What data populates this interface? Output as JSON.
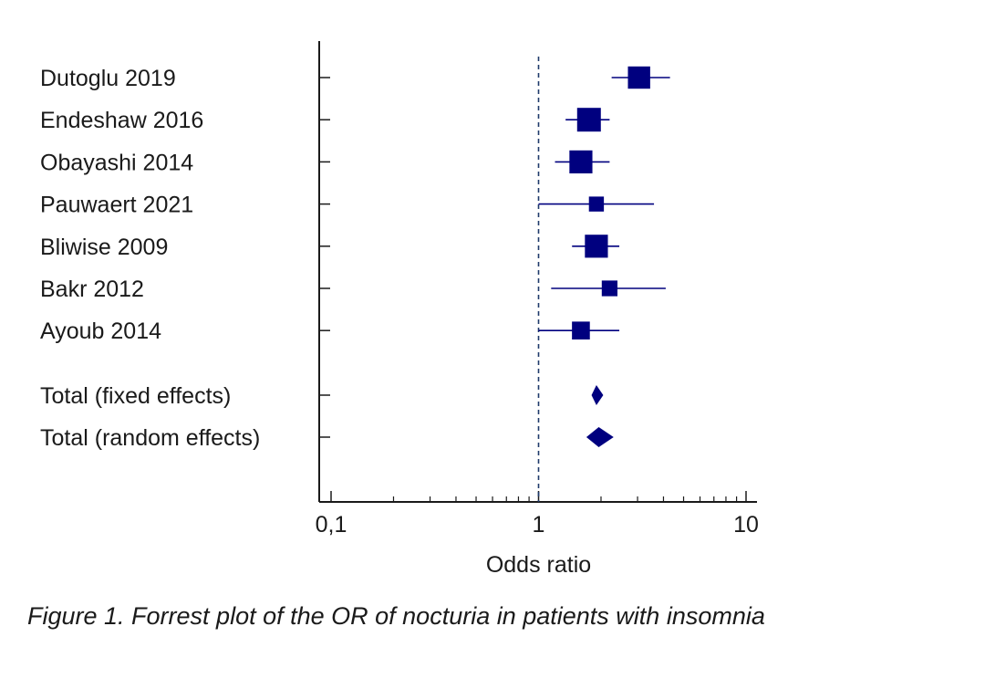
{
  "chart_data": {
    "type": "forest",
    "xlabel": "Odds ratio",
    "x_scale": "log",
    "xlim": [
      0.1,
      10
    ],
    "x_ticks": [
      {
        "value": 0.1,
        "label": "0,1"
      },
      {
        "value": 1,
        "label": "1"
      },
      {
        "value": 10,
        "label": "10"
      }
    ],
    "reference_line": 1,
    "studies": [
      {
        "label": "Dutoglu 2019",
        "or": 3.05,
        "ci": [
          2.25,
          4.3
        ],
        "weight": 0.9
      },
      {
        "label": "Endeshaw 2016",
        "or": 1.75,
        "ci": [
          1.35,
          2.2
        ],
        "weight": 1.0
      },
      {
        "label": "Obayashi 2014",
        "or": 1.6,
        "ci": [
          1.2,
          2.2
        ],
        "weight": 0.95
      },
      {
        "label": "Pauwaert 2021",
        "or": 1.9,
        "ci": [
          1.0,
          3.6
        ],
        "weight": 0.4
      },
      {
        "label": "Bliwise 2009",
        "or": 1.9,
        "ci": [
          1.45,
          2.45
        ],
        "weight": 0.95
      },
      {
        "label": "Bakr 2012",
        "or": 2.2,
        "ci": [
          1.15,
          4.1
        ],
        "weight": 0.45
      },
      {
        "label": "Ayoub 2014",
        "or": 1.6,
        "ci": [
          1.0,
          2.45
        ],
        "weight": 0.6
      }
    ],
    "totals": [
      {
        "label": "Total (fixed effects)",
        "or": 1.9,
        "ci": [
          1.8,
          2.05
        ]
      },
      {
        "label": "Total (random effects)",
        "or": 1.95,
        "ci": [
          1.7,
          2.3
        ]
      }
    ],
    "color": "#00007f"
  },
  "caption": "Figure 1. Forrest plot of the OR of nocturia in patients with insomnia"
}
